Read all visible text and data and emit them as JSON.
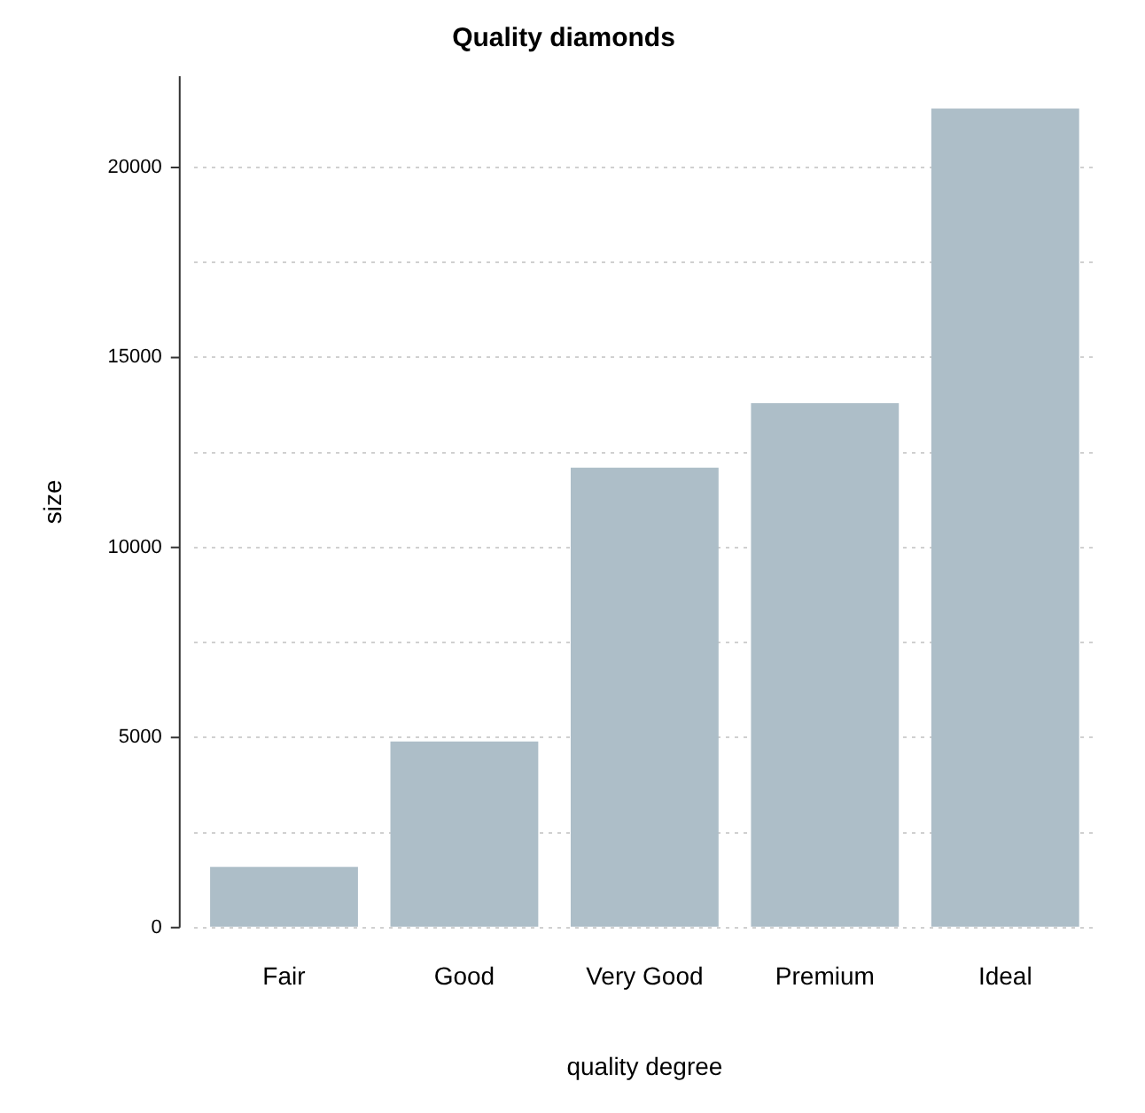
{
  "chart_data": {
    "type": "bar",
    "title": "Quality diamonds",
    "xlabel": "quality degree",
    "ylabel": "size",
    "categories": [
      "Fair",
      "Good",
      "Very Good",
      "Premium",
      "Ideal"
    ],
    "values": [
      1600,
      4900,
      12100,
      13800,
      21550
    ],
    "color": "#adbec8",
    "ylim": [
      0,
      22400
    ],
    "yticks": [
      0,
      {
        "value": 2500,
        "label": null
      },
      5000,
      {
        "value": 7500,
        "label": null
      },
      10000,
      {
        "value": 12500,
        "label": null
      },
      15000,
      {
        "value": 17500,
        "label": null
      },
      20000
    ],
    "grid": "y",
    "legend": false
  }
}
